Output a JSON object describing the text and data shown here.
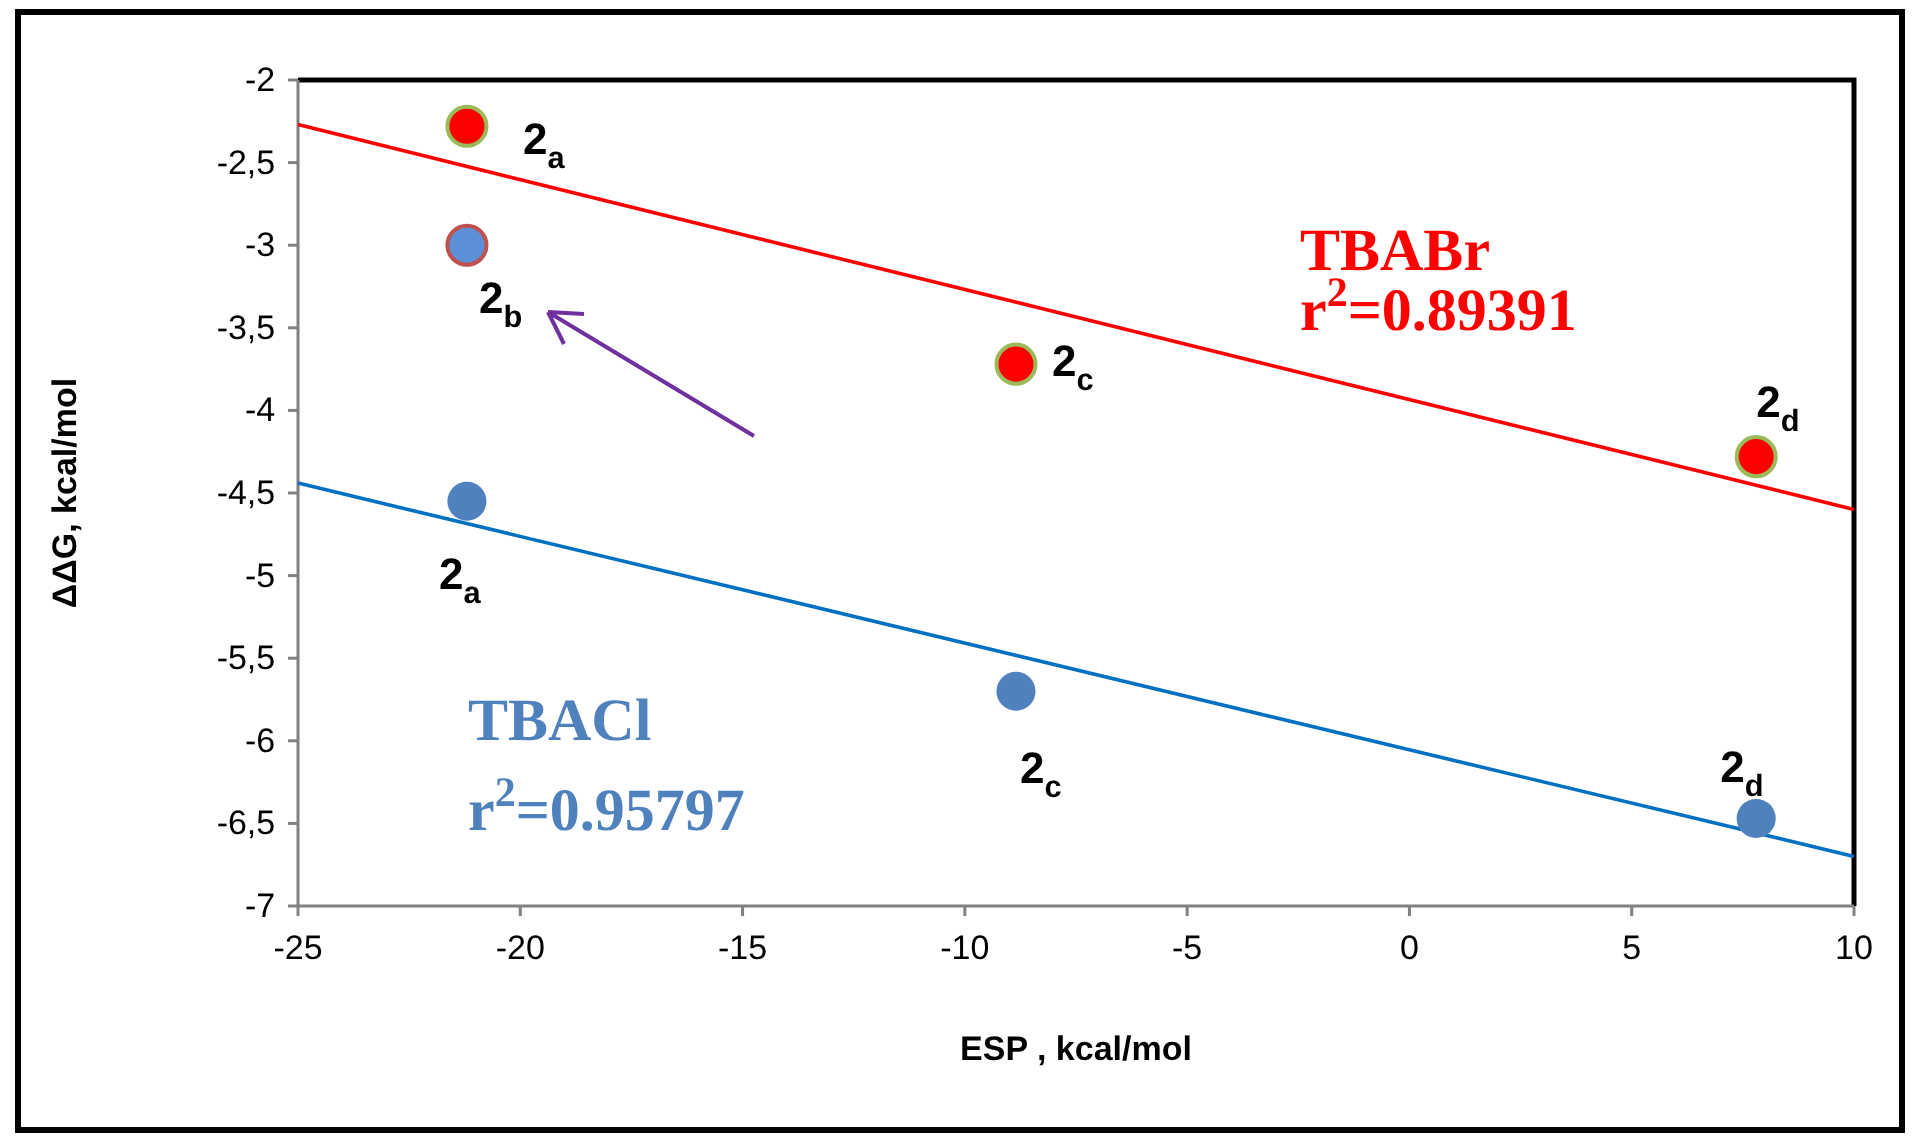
{
  "chart_data": {
    "type": "scatter",
    "xlabel": "ESP , kcal/mol",
    "ylabel": "ΔΔG, kcal/mol",
    "xlim": [
      -25,
      10
    ],
    "xticks": [
      -25,
      -20,
      -15,
      -10,
      -5,
      0,
      5,
      10
    ],
    "ylim": [
      -7,
      -2
    ],
    "yticks": [
      {
        "value": -2,
        "label": "-2"
      },
      {
        "value": -2.5,
        "label": "-2,5"
      },
      {
        "value": -3,
        "label": "-3"
      },
      {
        "value": -3.5,
        "label": "-3,5"
      },
      {
        "value": -4,
        "label": "-4"
      },
      {
        "value": -4.5,
        "label": "-4,5"
      },
      {
        "value": -5,
        "label": "-5"
      },
      {
        "value": -5.5,
        "label": "-5,5"
      },
      {
        "value": -6,
        "label": "-6"
      },
      {
        "value": -6.5,
        "label": "-6,5"
      },
      {
        "value": -7,
        "label": "-7"
      }
    ],
    "grid": false,
    "marker": "circle",
    "series": [
      {
        "color": "#ff0000",
        "x": [
          -21.2,
          -8.85,
          7.8
        ],
        "values": [
          -2.28,
          -3.72,
          -4.28
        ]
      },
      {
        "color": "#4f81bd",
        "x": [
          -21.2,
          -8.85,
          7.8
        ],
        "values": [
          -4.55,
          -5.7,
          -6.47
        ]
      },
      {
        "color": "#5b8fd6",
        "x": [
          -21.2
        ],
        "values": [
          -3.0
        ]
      },
      {
        "name": "TBABr",
        "type": "line",
        "marker": "none",
        "color": "#ff0000",
        "x": [
          -25,
          10
        ],
        "values": [
          -2.27,
          -4.6
        ]
      },
      {
        "name": "TBACl",
        "type": "line",
        "marker": "none",
        "color": "#0070c0",
        "x": [
          -25,
          10
        ],
        "values": [
          -4.44,
          -6.7
        ]
      }
    ],
    "annotations": [
      {
        "text": "2$_{a}$",
        "x": -21.2,
        "y": -2.28
      },
      {
        "text": "2$_{b}$",
        "x": -21.2,
        "y": -3.0
      },
      {
        "text": "2$_{c}$",
        "x": -8.85,
        "y": -3.72
      },
      {
        "text": "2$_{d}$",
        "x": 7.8,
        "y": -4.28
      },
      {
        "text": "2$_{a}$",
        "x": -21.2,
        "y": -4.55
      },
      {
        "text": "2$_{c}$",
        "x": -8.85,
        "y": -5.7
      },
      {
        "text": "2$_{d}$",
        "x": 7.8,
        "y": -6.47
      },
      "r$^{2}$=0.89391",
      "r$^{2}$=0.95797"
    ]
  }
}
